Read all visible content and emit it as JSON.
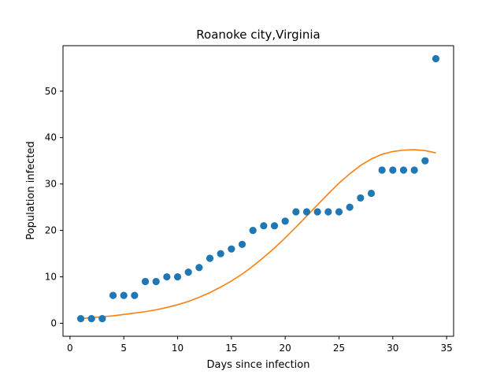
{
  "chart_data": {
    "type": "scatter",
    "title": "Roanoke city,Virginia",
    "xlabel": "Days since infection",
    "ylabel": "Population infected",
    "xlim": [
      -0.65,
      35.65
    ],
    "ylim": [
      -2.8,
      59.8
    ],
    "xticks": [
      0,
      5,
      10,
      15,
      20,
      25,
      30,
      35
    ],
    "yticks": [
      0,
      10,
      20,
      30,
      40,
      50
    ],
    "grid": false,
    "legend": "none",
    "series": [
      {
        "kind": "scatter",
        "color": "#1f77b4",
        "x": [
          1,
          2,
          3,
          4,
          5,
          6,
          7,
          8,
          9,
          10,
          11,
          12,
          13,
          14,
          15,
          16,
          17,
          18,
          19,
          20,
          21,
          22,
          23,
          24,
          25,
          26,
          27,
          28,
          29,
          30,
          31,
          32,
          33,
          34
        ],
        "y": [
          1,
          1,
          1,
          6,
          6,
          6,
          9,
          9,
          10,
          10,
          11,
          12,
          14,
          15,
          16,
          17,
          20,
          21,
          21,
          22,
          24,
          24,
          24,
          24,
          24,
          25,
          27,
          28,
          33,
          33,
          33,
          33,
          35,
          57
        ]
      },
      {
        "kind": "line",
        "color": "#ff7f0e",
        "x": [
          1,
          2,
          3,
          4,
          5,
          6,
          7,
          8,
          9,
          10,
          11,
          12,
          13,
          14,
          15,
          16,
          17,
          18,
          19,
          20,
          21,
          22,
          23,
          24,
          25,
          26,
          27,
          28,
          29,
          30,
          31,
          32,
          33,
          34
        ],
        "y": [
          1.0,
          1.2,
          1.4,
          1.6,
          1.9,
          2.2,
          2.5,
          2.9,
          3.4,
          4.0,
          4.7,
          5.6,
          6.6,
          7.8,
          9.1,
          10.6,
          12.3,
          14.2,
          16.2,
          18.4,
          20.7,
          23.1,
          25.5,
          27.9,
          30.2,
          32.2,
          34.0,
          35.4,
          36.4,
          37.0,
          37.3,
          37.4,
          37.2,
          36.7
        ]
      }
    ]
  }
}
